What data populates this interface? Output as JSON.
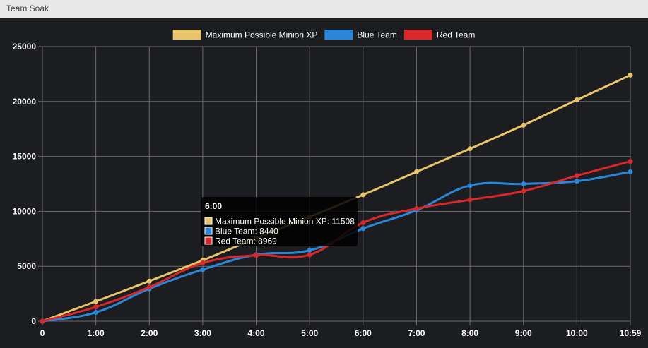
{
  "window": {
    "title": "Team Soak"
  },
  "colors": {
    "background": "#1c1d20",
    "grid": "#6b6b6b",
    "max_xp": "#e8c46a",
    "blue": "#2a86d8",
    "red": "#d9282c"
  },
  "tooltip": {
    "title": "6:00",
    "lines": [
      {
        "color": "#e8c46a",
        "text": "Maximum Possible Minion XP: 11508"
      },
      {
        "color": "#2a86d8",
        "text": "Blue Team: 8440"
      },
      {
        "color": "#d9282c",
        "text": "Red Team: 8969"
      }
    ]
  },
  "chart_data": {
    "type": "line",
    "title": "",
    "xlabel": "",
    "ylabel": "",
    "categories": [
      "0",
      "1:00",
      "2:00",
      "3:00",
      "4:00",
      "5:00",
      "6:00",
      "7:00",
      "8:00",
      "9:00",
      "10:00",
      "10:59"
    ],
    "ylim": [
      0,
      25000
    ],
    "yticks": [
      0,
      5000,
      10000,
      15000,
      20000,
      25000
    ],
    "grid": true,
    "legend_position": "top",
    "series": [
      {
        "name": "Maximum Possible Minion XP",
        "color": "#e8c46a",
        "values": [
          0,
          1800,
          3650,
          5550,
          7550,
          9500,
          11508,
          13600,
          15700,
          17850,
          20150,
          22400
        ]
      },
      {
        "name": "Blue Team",
        "color": "#2a86d8",
        "values": [
          0,
          800,
          2950,
          4700,
          6050,
          6450,
          8440,
          10100,
          12350,
          12500,
          12750,
          13600
        ]
      },
      {
        "name": "Red Team",
        "color": "#d9282c",
        "values": [
          0,
          1300,
          3100,
          5300,
          6000,
          6050,
          8969,
          10250,
          11050,
          11850,
          13250,
          14550
        ]
      }
    ]
  }
}
